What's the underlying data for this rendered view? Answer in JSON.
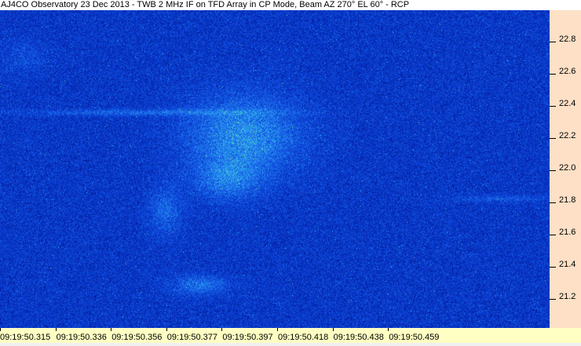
{
  "chart_data": {
    "type": "heatmap",
    "title": "AJ4CO Observatory 23 Dec 2013 - TWB 2 MHz IF on TFD Array in CP Mode, Beam AZ 270° EL 60° - RCP",
    "xlabel": "",
    "ylabel": "",
    "x_ticks": [
      "09:19:50.315",
      "09:19:50.336",
      "09:19:50.356",
      "09:19:50.377",
      "09:19:50.397",
      "09:19:50.418",
      "09:19:50.438",
      "09:19:50.459"
    ],
    "y_ticks": [
      22.8,
      22.6,
      22.4,
      22.2,
      22.0,
      21.8,
      21.6,
      21.4,
      21.2
    ],
    "y_tick_labels": [
      "22.8",
      "22.6",
      "22.4",
      "22.2",
      "22.0",
      "21.8",
      "21.6",
      "21.4",
      "21.2"
    ],
    "y_axis_side": "right",
    "colormap": [
      "#00148c",
      "#0a3cd2",
      "#1e78f0",
      "#3cc8e6",
      "#c8f03c"
    ]
  },
  "colors": {
    "y_axis_bg": "#fde0c6",
    "x_axis_bg": "#ffffc4"
  }
}
